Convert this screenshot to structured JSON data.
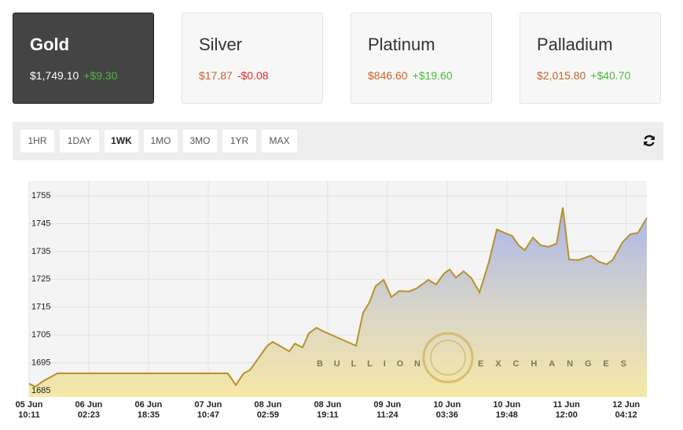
{
  "cards": [
    {
      "name": "Gold",
      "price": "$1,749.10",
      "change": "+$9.30"
    },
    {
      "name": "Silver",
      "price": "$17.87",
      "change": "-$0.08"
    },
    {
      "name": "Platinum",
      "price": "$846.60",
      "change": "+$19.60"
    },
    {
      "name": "Palladium",
      "price": "$2,015.80",
      "change": "+$40.70"
    }
  ],
  "tabs": [
    "1HR",
    "1DAY",
    "1WK",
    "1MO",
    "3MO",
    "1YR",
    "MAX"
  ],
  "active_tab": "1WK",
  "chart_data": {
    "type": "area",
    "watermark": [
      "BULLION",
      "EXCHANGES"
    ],
    "color": "#b8922a",
    "x": [
      0,
      1.7,
      3.8,
      7.7,
      53.9,
      56.1,
      58.2,
      59.9,
      64.6,
      66.1,
      68.4,
      70.6,
      72.1,
      74.2,
      75.9,
      78.0,
      79.5,
      88.7,
      90.6,
      92.3,
      94.0,
      96.2,
      98.3,
      100.4,
      103.0,
      105.1,
      107.2,
      108.3,
      110.4,
      112.6,
      114.1,
      115.8,
      117.9,
      120.0,
      122.2,
      124.7,
      126.9,
      129.0,
      131.1,
      132.8,
      134.5,
      136.7,
      138.8,
      140.9,
      143.1,
      144.8,
      146.5,
      149.0,
      152.4,
      154.6,
      156.7,
      158.4,
      161.0,
      163.1,
      165.2,
      167.6
    ],
    "values": [
      1687.5,
      1686.4,
      1688.4,
      1691.2,
      1691.2,
      1687.0,
      1691.2,
      1692.3,
      1701.1,
      1702.5,
      1700.8,
      1699.1,
      1701.9,
      1700.5,
      1705.6,
      1707.6,
      1706.5,
      1701.1,
      1712.9,
      1716.6,
      1722.5,
      1724.8,
      1718.6,
      1720.8,
      1720.6,
      1721.7,
      1723.7,
      1724.8,
      1723.1,
      1727.1,
      1728.5,
      1725.6,
      1727.9,
      1725.4,
      1720.3,
      1731.0,
      1742.9,
      1741.7,
      1740.6,
      1737.2,
      1735.5,
      1740.0,
      1737.2,
      1736.7,
      1737.8,
      1750.8,
      1732.1,
      1731.9,
      1733.5,
      1731.3,
      1730.4,
      1732.1,
      1738.3,
      1741.2,
      1741.7,
      1747.1
    ],
    "xlim": [
      0,
      167.6
    ],
    "xticks": [
      {
        "value": 0,
        "label": "05 Jun 10:11"
      },
      {
        "value": 16.2,
        "label": "06 Jun 02:23"
      },
      {
        "value": 32.4,
        "label": "06 Jun 18:35"
      },
      {
        "value": 48.6,
        "label": "07 Jun 10:47"
      },
      {
        "value": 64.8,
        "label": "08 Jun 02:59"
      },
      {
        "value": 81,
        "label": "08 Jun 19:11"
      },
      {
        "value": 97.2,
        "label": "09 Jun 11:24"
      },
      {
        "value": 113.4,
        "label": "10 Jun 03:36"
      },
      {
        "value": 129.6,
        "label": "10 Jun 19:48"
      },
      {
        "value": 145.8,
        "label": "11 Jun 12:00"
      },
      {
        "value": 162,
        "label": "12 Jun 04:12"
      }
    ],
    "ylim": [
      1682.7,
      1760.4
    ],
    "yticks": [
      1685,
      1695,
      1705,
      1715,
      1725,
      1735,
      1745,
      1755
    ],
    "grid": true
  }
}
